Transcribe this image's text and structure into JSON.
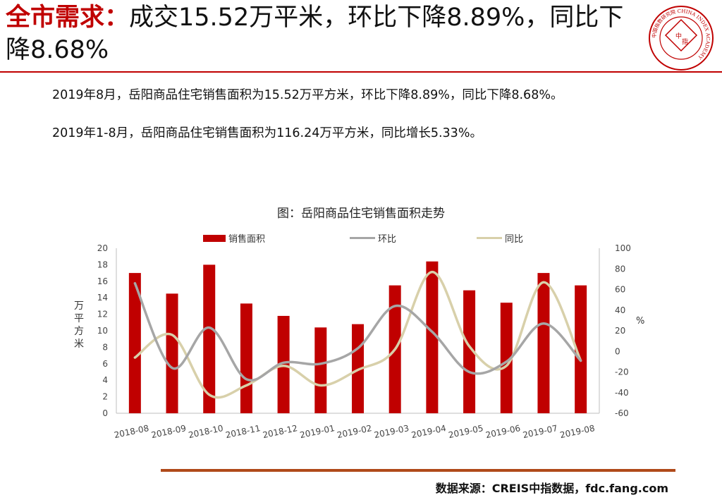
{
  "header": {
    "highlight": "全市需求：",
    "rest": "成交15.52万平米，环比下降8.89%，同比下降8.68%"
  },
  "logo": {
    "text_center": "中指",
    "ring_text": "中国指数研究院 CHINA INDEX ACADEMY"
  },
  "paragraphs": [
    "2019年8月，岳阳商品住宅销售面积为15.52万平方米，环比下降8.89%，同比下降8.68%。",
    "2019年1-8月，岳阳商品住宅销售面积为116.24万平方米，同比增长5.33%。"
  ],
  "chart_data": {
    "type": "bar",
    "title": "图：岳阳商品住宅销售面积走势",
    "categories": [
      "2018-08",
      "2018-09",
      "2018-10",
      "2018-11",
      "2018-12",
      "2019-01",
      "2019-02",
      "2019-03",
      "2019-04",
      "2019-05",
      "2019-06",
      "2019-07",
      "2019-08"
    ],
    "series": [
      {
        "name": "销售面积",
        "kind": "bar",
        "axis": "left",
        "color": "#c00000",
        "values": [
          17.0,
          14.5,
          18.0,
          13.3,
          11.8,
          10.4,
          10.8,
          15.5,
          18.4,
          14.9,
          13.4,
          17.0,
          15.5
        ]
      },
      {
        "name": "环比",
        "kind": "line",
        "axis": "right",
        "color": "#a6a6a6",
        "values": [
          66,
          -16,
          23,
          -27,
          -11,
          -12,
          3,
          44,
          19,
          -20,
          -10,
          27,
          -9
        ]
      },
      {
        "name": "同比",
        "kind": "line",
        "axis": "right",
        "color": "#d8d0aa",
        "values": [
          -6,
          16,
          -42,
          -33,
          -14,
          -33,
          -18,
          2,
          77,
          5,
          -14,
          67,
          -9
        ]
      }
    ],
    "ylabel": "万平方米",
    "y2label": "%",
    "ylim": [
      0,
      20
    ],
    "yticks": [
      0,
      2,
      4,
      6,
      8,
      10,
      12,
      14,
      16,
      18,
      20
    ],
    "y2lim": [
      -60,
      100
    ],
    "y2ticks": [
      -60,
      -40,
      -20,
      0,
      20,
      40,
      60,
      80,
      100
    ],
    "legend": "top",
    "grid": false
  },
  "footer": {
    "source": "数据来源：CREIS中指数据，fdc.fang.com"
  }
}
